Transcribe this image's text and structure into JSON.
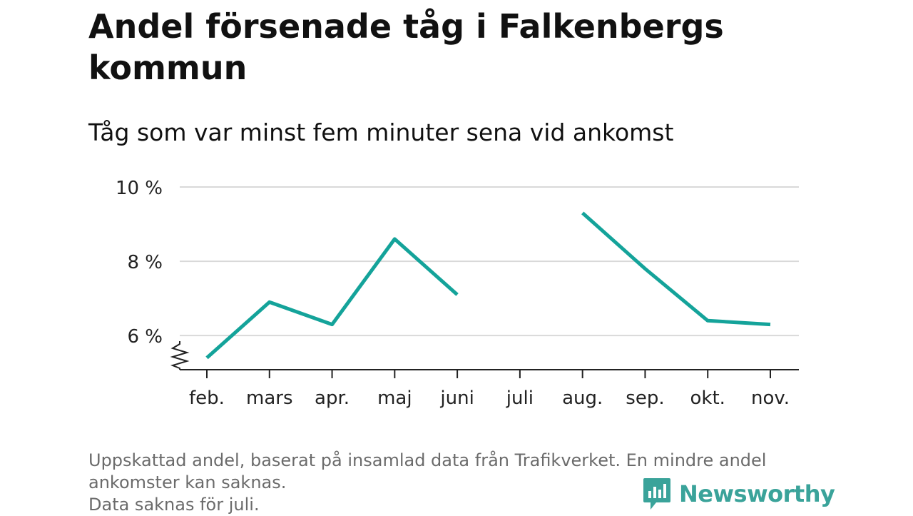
{
  "title": "Andel försenade tåg i Falkenbergs kommun",
  "subtitle": "Tåg som var minst fem minuter sena vid ankomst",
  "footnote": {
    "line1": "Uppskattad andel, baserat på insamlad data från Trafikverket. En mindre andel ankomster kan saknas.",
    "line2": "Data saknas för juli."
  },
  "brand": {
    "name": "Newsworthy",
    "color": "#3aa39a",
    "icon": "newsworthy-logo-icon"
  },
  "chart_data": {
    "type": "line",
    "categories": [
      "feb.",
      "mars",
      "apr.",
      "maj",
      "juni",
      "juli",
      "aug.",
      "sep.",
      "okt.",
      "nov."
    ],
    "series": [
      {
        "values": [
          5.4,
          6.9,
          6.3,
          8.6,
          7.1,
          null,
          9.3,
          7.8,
          6.4,
          6.3
        ],
        "color": "#14a39a"
      }
    ],
    "yticks": [
      6,
      8,
      10
    ],
    "ytick_labels": [
      "6 %",
      "8 %",
      "10 %"
    ],
    "ylim": [
      5.1,
      10
    ],
    "axis_break": true,
    "grid": true,
    "xlabel": "",
    "ylabel": ""
  }
}
